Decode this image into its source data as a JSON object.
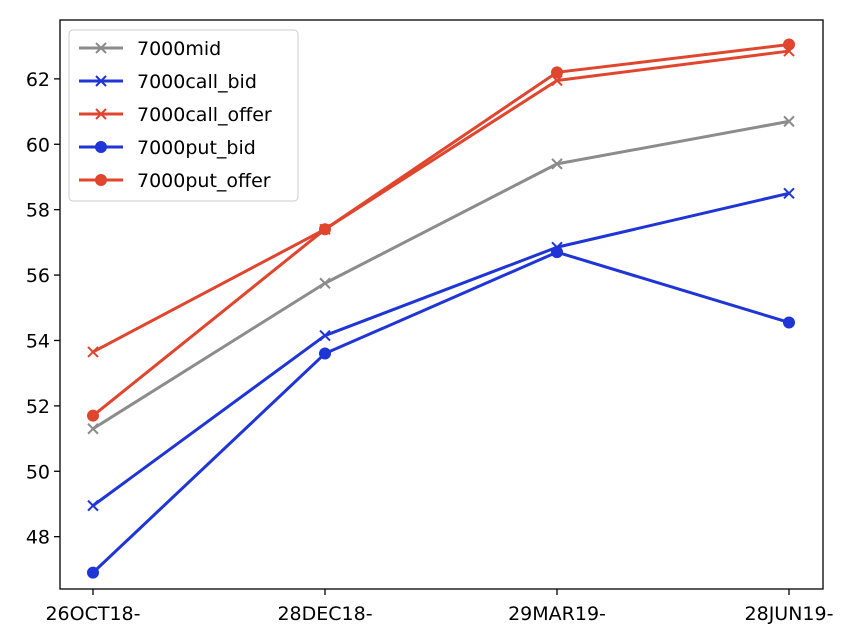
{
  "chart_data": {
    "type": "line",
    "title": "",
    "xlabel": "",
    "ylabel": "",
    "categories": [
      "26OCT18-",
      "28DEC18-",
      "29MAR19-",
      "28JUN19-"
    ],
    "yticks": [
      48,
      50,
      52,
      54,
      56,
      58,
      60,
      62
    ],
    "ylim": [
      46.4,
      63.8
    ],
    "grid": false,
    "legend_position": "top-left",
    "series": [
      {
        "name": "7000mid",
        "values": [
          51.3,
          55.75,
          59.4,
          60.7
        ],
        "color": "#8c8c8c",
        "marker": "x"
      },
      {
        "name": "7000call_bid",
        "values": [
          48.95,
          54.15,
          56.85,
          58.5
        ],
        "color": "#1f35d6",
        "marker": "x"
      },
      {
        "name": "7000call_offer",
        "values": [
          53.65,
          57.4,
          61.95,
          62.85
        ],
        "color": "#e0452d",
        "marker": "x"
      },
      {
        "name": "7000put_bid",
        "values": [
          46.9,
          53.6,
          56.7,
          54.55
        ],
        "color": "#1f35d6",
        "marker": "o"
      },
      {
        "name": "7000put_offer",
        "values": [
          51.7,
          57.4,
          62.2,
          63.05
        ],
        "color": "#e0452d",
        "marker": "o"
      }
    ]
  }
}
